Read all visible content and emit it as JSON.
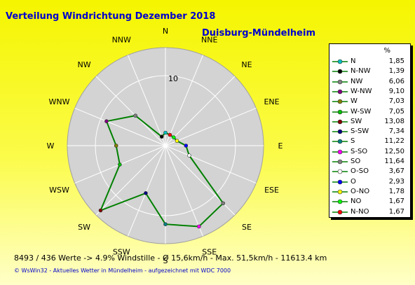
{
  "header": {
    "title": "Verteilung Windrichtung    Dezember 2018",
    "station": "Duisburg-Mündelheim"
  },
  "chart_data": {
    "type": "radar",
    "title": "Verteilung Windrichtung    Dezember 2018",
    "unit": "%",
    "rmax": 14,
    "ring_label": "10",
    "directions": [
      "N",
      "NNE",
      "NE",
      "ENE",
      "E",
      "ESE",
      "SE",
      "SSE",
      "S",
      "SSW",
      "SW",
      "WSW",
      "W",
      "WNW",
      "NW",
      "NNW"
    ],
    "values_by_direction": [
      1.85,
      1.67,
      1.67,
      1.78,
      2.93,
      3.67,
      11.64,
      12.5,
      11.22,
      7.34,
      13.08,
      7.05,
      7.03,
      9.1,
      6.06,
      1.39
    ],
    "series_color": "#008000",
    "legend": [
      {
        "label": "N",
        "value": "1,85",
        "color": "#00c0c0"
      },
      {
        "label": "N-NW",
        "value": "1,39",
        "color": "#000000"
      },
      {
        "label": "NW",
        "value": "6,06",
        "color": "#808080"
      },
      {
        "label": "W-NW",
        "value": "9,10",
        "color": "#800080"
      },
      {
        "label": "W",
        "value": "7,03",
        "color": "#808000"
      },
      {
        "label": "W-SW",
        "value": "7,05",
        "color": "#00c000"
      },
      {
        "label": "SW",
        "value": "13,08",
        "color": "#800000"
      },
      {
        "label": "S-SW",
        "value": "7,34",
        "color": "#000080"
      },
      {
        "label": "S",
        "value": "11,22",
        "color": "#008080"
      },
      {
        "label": "S-SO",
        "value": "12,50",
        "color": "#ff00ff"
      },
      {
        "label": "SO",
        "value": "11,64",
        "color": "#808080"
      },
      {
        "label": "O-SO",
        "value": "3,67",
        "color": "#ffffff"
      },
      {
        "label": "O",
        "value": "2,93",
        "color": "#0000ff"
      },
      {
        "label": "O-NO",
        "value": "1,78",
        "color": "#ffff00"
      },
      {
        "label": "NO",
        "value": "1,67",
        "color": "#00ff00"
      },
      {
        "label": "N-NO",
        "value": "1,67",
        "color": "#ff0000"
      }
    ]
  },
  "stats": {
    "line": "8493 / 436 Werte  -> 4.9% Windstille   -   Ø 15,6km/h  -  Max. 51,5km/h   -   11613.4 km"
  },
  "footer": {
    "line": "© WsWin32  -  Aktuelles Wetter in Mündelheim  -  aufgezeichnet mit WDC 7000"
  }
}
